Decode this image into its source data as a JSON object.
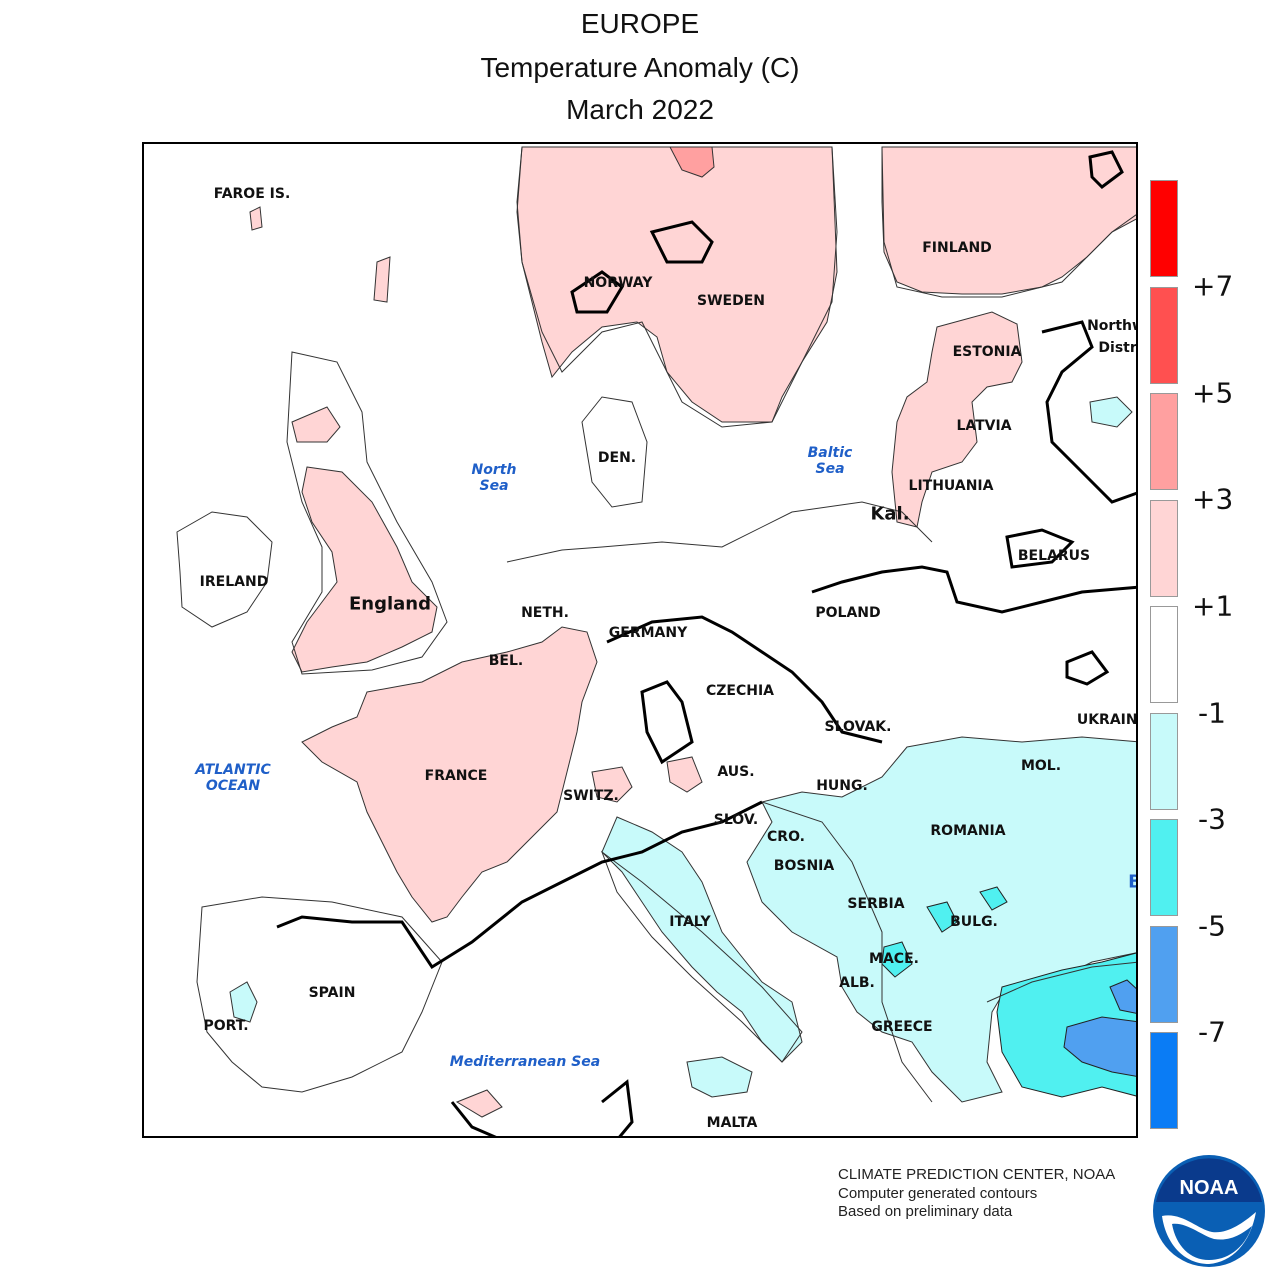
{
  "header": {
    "region": "EUROPE",
    "variable": "Temperature Anomaly (C)",
    "period": "March 2022"
  },
  "colors": {
    "border": "#000000",
    "land_outline": "#333333",
    "sea_label": "#1f5fc8"
  },
  "map_labels": [
    {
      "id": "faroe",
      "text": "FAROE IS."
    },
    {
      "id": "norway",
      "text": "NORWAY"
    },
    {
      "id": "sweden",
      "text": "SWEDEN"
    },
    {
      "id": "finland",
      "text": "FINLAND"
    },
    {
      "id": "northwest-district-1",
      "text": "Northw"
    },
    {
      "id": "northwest-district-2",
      "text": "Distri"
    },
    {
      "id": "estonia",
      "text": "ESTONIA"
    },
    {
      "id": "latvia",
      "text": "LATVIA"
    },
    {
      "id": "lithuania",
      "text": "LITHUANIA"
    },
    {
      "id": "kaliningrad",
      "text": "Kal."
    },
    {
      "id": "denmark",
      "text": "DEN."
    },
    {
      "id": "ireland",
      "text": "IRELAND"
    },
    {
      "id": "england",
      "text": "England"
    },
    {
      "id": "netherlands",
      "text": "NETH."
    },
    {
      "id": "belgium",
      "text": "BEL."
    },
    {
      "id": "germany",
      "text": "GERMANY"
    },
    {
      "id": "poland",
      "text": "POLAND"
    },
    {
      "id": "belarus",
      "text": "BELARUS"
    },
    {
      "id": "czechia",
      "text": "CZECHIA"
    },
    {
      "id": "slovakia",
      "text": "SLOVAK."
    },
    {
      "id": "ukraine",
      "text": "UKRAINE"
    },
    {
      "id": "france",
      "text": "FRANCE"
    },
    {
      "id": "switzerland",
      "text": "SWITZ."
    },
    {
      "id": "austria",
      "text": "AUS."
    },
    {
      "id": "hungary",
      "text": "HUNG."
    },
    {
      "id": "moldova",
      "text": "MOL."
    },
    {
      "id": "slovenia",
      "text": "SLOV."
    },
    {
      "id": "croatia",
      "text": "CRO."
    },
    {
      "id": "romania",
      "text": "ROMANIA"
    },
    {
      "id": "bosnia",
      "text": "BOSNIA"
    },
    {
      "id": "serbia",
      "text": "SERBIA"
    },
    {
      "id": "bulgaria",
      "text": "BULG."
    },
    {
      "id": "italy",
      "text": "ITALY"
    },
    {
      "id": "macedonia",
      "text": "MACE."
    },
    {
      "id": "albania",
      "text": "ALB."
    },
    {
      "id": "greece",
      "text": "GREECE"
    },
    {
      "id": "spain",
      "text": "SPAIN"
    },
    {
      "id": "portugal",
      "text": "PORT."
    },
    {
      "id": "malta",
      "text": "MALTA"
    },
    {
      "id": "black-sea-fragment",
      "text": "B"
    }
  ],
  "sea_labels": [
    {
      "id": "north-sea",
      "text": "North\nSea"
    },
    {
      "id": "baltic-sea",
      "text": "Baltic\nSea"
    },
    {
      "id": "atlantic-ocean",
      "text": "ATLANTIC\nOCEAN"
    },
    {
      "id": "mediterranean-sea",
      "text": "Mediterranean Sea"
    }
  ],
  "legend": {
    "classes": [
      {
        "range": "> +7",
        "color": "#ff0000"
      },
      {
        "range": "+5 to +7",
        "color": "#ff5050"
      },
      {
        "range": "+3 to +5",
        "color": "#ffa0a0"
      },
      {
        "range": "+1 to +3",
        "color": "#ffd5d5"
      },
      {
        "range": "-1 to +1",
        "color": "#ffffff"
      },
      {
        "range": "-3 to -1",
        "color": "#c8fafa"
      },
      {
        "range": "-5 to -3",
        "color": "#50f0f0"
      },
      {
        "range": "-7 to -5",
        "color": "#50a0f0"
      },
      {
        "range": "< -7",
        "color": "#0a7cf5"
      }
    ],
    "tick_labels": [
      "+7",
      "+5",
      "+3",
      "+1",
      "-1",
      "-3",
      "-5",
      "-7"
    ]
  },
  "credits": {
    "line1": "CLIMATE PREDICTION CENTER, NOAA",
    "line2": "Computer generated contours",
    "line3": "Based on preliminary data"
  },
  "logo": {
    "text": "NOAA",
    "color": "#0a5fb4"
  }
}
